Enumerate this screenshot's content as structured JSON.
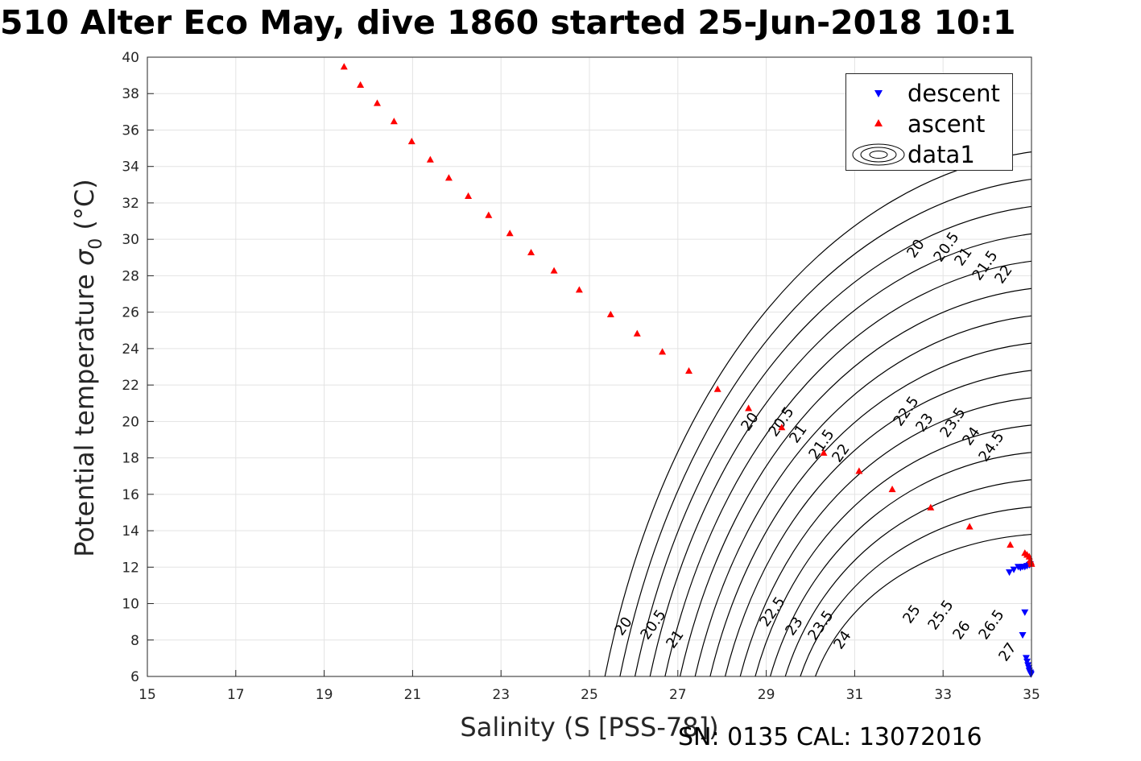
{
  "title": "510 Alter Eco May, dive 1860 started 25-Jun-2018 10:1",
  "footer": "SN: 0135  CAL: 13072016",
  "chart_data": {
    "type": "scatter",
    "title": "510 Alter Eco May, dive 1860 started 25-Jun-2018 10:1",
    "xlabel": "Salinity (S [PSS-78])",
    "ylabel": "Potential temperature σ0 (°C)",
    "xlim": [
      15,
      35
    ],
    "ylim": [
      6,
      40
    ],
    "xticks": [
      15,
      17,
      19,
      21,
      23,
      25,
      27,
      29,
      31,
      33,
      35
    ],
    "yticks": [
      6,
      8,
      10,
      12,
      14,
      16,
      18,
      20,
      22,
      24,
      26,
      28,
      30,
      32,
      34,
      36,
      38,
      40
    ],
    "grid": true,
    "legend_position": "top-right",
    "series": [
      {
        "name": "descent",
        "marker": "triangle-down",
        "color": "#0000ff",
        "points": [
          [
            34.5,
            11.7
          ],
          [
            34.6,
            11.85
          ],
          [
            34.7,
            12.0
          ],
          [
            34.75,
            11.95
          ],
          [
            34.8,
            12.0
          ],
          [
            34.85,
            12.0
          ],
          [
            34.9,
            12.05
          ],
          [
            34.95,
            12.1
          ],
          [
            34.97,
            12.15
          ],
          [
            34.85,
            9.5
          ],
          [
            34.8,
            8.25
          ],
          [
            34.88,
            7.0
          ],
          [
            34.9,
            6.8
          ],
          [
            34.92,
            6.6
          ],
          [
            34.94,
            6.45
          ],
          [
            34.95,
            6.3
          ],
          [
            34.97,
            6.2
          ],
          [
            34.98,
            6.15
          ],
          [
            34.99,
            6.1
          ]
        ]
      },
      {
        "name": "ascent",
        "marker": "triangle-up",
        "color": "#ff0000",
        "points": [
          [
            19.45,
            39.5
          ],
          [
            19.82,
            38.5
          ],
          [
            20.2,
            37.5
          ],
          [
            20.58,
            36.5
          ],
          [
            20.98,
            35.4
          ],
          [
            21.4,
            34.4
          ],
          [
            21.82,
            33.4
          ],
          [
            22.26,
            32.4
          ],
          [
            22.72,
            31.35
          ],
          [
            23.2,
            30.35
          ],
          [
            23.68,
            29.3
          ],
          [
            24.2,
            28.3
          ],
          [
            24.77,
            27.25
          ],
          [
            25.48,
            25.9
          ],
          [
            26.08,
            24.85
          ],
          [
            26.65,
            23.85
          ],
          [
            27.25,
            22.8
          ],
          [
            27.9,
            21.8
          ],
          [
            28.6,
            20.75
          ],
          [
            29.35,
            19.7
          ],
          [
            30.3,
            18.3
          ],
          [
            31.1,
            17.3
          ],
          [
            31.85,
            16.3
          ],
          [
            32.72,
            15.3
          ],
          [
            33.6,
            14.25
          ],
          [
            34.52,
            13.25
          ],
          [
            34.85,
            12.8
          ],
          [
            34.9,
            12.7
          ],
          [
            34.95,
            12.6
          ],
          [
            34.97,
            12.4
          ],
          [
            34.99,
            12.3
          ],
          [
            35.0,
            12.2
          ]
        ]
      },
      {
        "name": "data1",
        "type": "contour",
        "color": "#000000",
        "levels": [
          20,
          20.5,
          21,
          21.5,
          22,
          22.5,
          23,
          23.5,
          24,
          24.5,
          25,
          25.5,
          26,
          26.5,
          27
        ]
      }
    ],
    "contour_labels": {
      "top_labels": [
        "20",
        "20.5",
        "21",
        "21.5",
        "22"
      ],
      "middle_labels": [
        "20",
        "20.5",
        "21",
        "21.5",
        "22",
        "22.5",
        "23",
        "23.5",
        "24",
        "24.5"
      ],
      "bottom_labels": [
        "20",
        "20.5",
        "21",
        "22.5",
        "23",
        "23.5",
        "24",
        "25",
        "25.5",
        "26",
        "26.5",
        "27"
      ]
    }
  }
}
